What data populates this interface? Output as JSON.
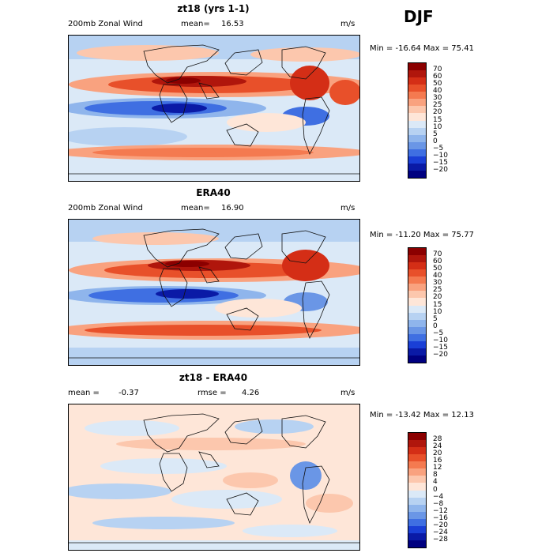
{
  "season": "DJF",
  "panels": [
    {
      "title": "zt18 (yrs 1-1)",
      "left_label": "200mb Zonal Wind",
      "mean_label": "mean=",
      "mean_value": "16.53",
      "units": "m/s",
      "minmax": "Min = -16.64 Max =  75.41",
      "colorbar_labels": [
        "70",
        "60",
        "50",
        "40",
        "30",
        "25",
        "20",
        "15",
        "10",
        "5",
        "0",
        "−5",
        "−10",
        "−15",
        "−20"
      ],
      "colors": [
        "#8b0000",
        "#b0160c",
        "#d42e16",
        "#e8502a",
        "#f47a50",
        "#f9a27f",
        "#fcc7ad",
        "#fee6d8",
        "#dbe9f7",
        "#b7d2f2",
        "#8fb5ec",
        "#6a96e6",
        "#3f6fe2",
        "#1a3fd6",
        "#0a1aa6",
        "#000080"
      ]
    },
    {
      "title": "ERA40",
      "left_label": "200mb Zonal Wind",
      "mean_label": "mean=",
      "mean_value": "16.90",
      "units": "m/s",
      "minmax": "Min = -11.20 Max =  75.77",
      "colorbar_labels": [
        "70",
        "60",
        "50",
        "40",
        "30",
        "25",
        "20",
        "15",
        "10",
        "5",
        "0",
        "−5",
        "−10",
        "−15",
        "−20"
      ],
      "colors": [
        "#8b0000",
        "#b0160c",
        "#d42e16",
        "#e8502a",
        "#f47a50",
        "#f9a27f",
        "#fcc7ad",
        "#fee6d8",
        "#dbe9f7",
        "#b7d2f2",
        "#8fb5ec",
        "#6a96e6",
        "#3f6fe2",
        "#1a3fd6",
        "#0a1aa6",
        "#000080"
      ]
    },
    {
      "title": "zt18 - ERA40",
      "left_label": "mean =",
      "mean_label": "rmse =",
      "mean_value": "-0.37",
      "rmse_value": "4.26",
      "units": "m/s",
      "minmax": "Min = -13.42 Max =  12.13",
      "colorbar_labels": [
        "28",
        "24",
        "20",
        "16",
        "12",
        "8",
        "4",
        "0",
        "−4",
        "−8",
        "−12",
        "−16",
        "−20",
        "−24",
        "−28"
      ],
      "colors": [
        "#8b0000",
        "#b0160c",
        "#d42e16",
        "#e8502a",
        "#f47a50",
        "#f9a27f",
        "#fcc7ad",
        "#fee6d8",
        "#dbe9f7",
        "#b7d2f2",
        "#8fb5ec",
        "#6a96e6",
        "#3f6fe2",
        "#1a3fd6",
        "#0a1aa6",
        "#000080"
      ]
    }
  ]
}
